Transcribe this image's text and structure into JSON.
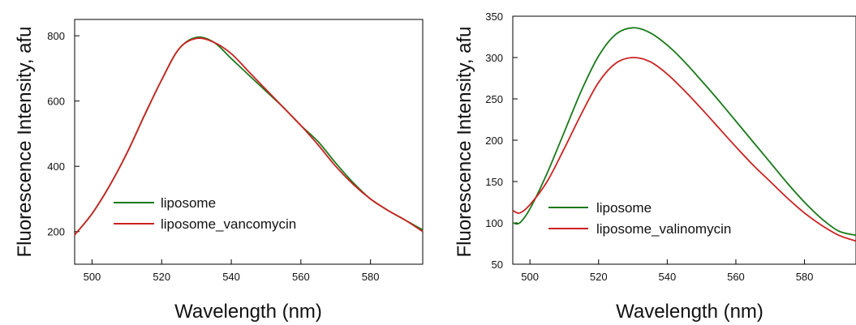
{
  "chart_data": [
    {
      "type": "line",
      "xlabel": "Wavelength (nm)",
      "ylabel": "Fluorescence Intensity, afu",
      "xlim": [
        495,
        595
      ],
      "ylim": [
        100,
        850
      ],
      "xticks": [
        500,
        520,
        540,
        560,
        580
      ],
      "yticks": [
        200,
        400,
        600,
        800
      ],
      "grid": false,
      "legend_position": "lower-left",
      "series": [
        {
          "name": "liposome",
          "color": "#1a7a1a",
          "x": [
            495,
            500,
            505,
            510,
            515,
            520,
            525,
            530,
            535,
            540,
            545,
            550,
            555,
            560,
            565,
            570,
            575,
            580,
            585,
            590,
            595
          ],
          "y": [
            190,
            255,
            340,
            440,
            555,
            665,
            760,
            795,
            780,
            730,
            680,
            630,
            580,
            525,
            475,
            410,
            350,
            300,
            265,
            235,
            205
          ]
        },
        {
          "name": "liposome_vancomycin",
          "color": "#cc2222",
          "x": [
            495,
            500,
            505,
            510,
            515,
            520,
            525,
            530,
            535,
            540,
            545,
            550,
            555,
            560,
            565,
            570,
            575,
            580,
            585,
            590,
            595
          ],
          "y": [
            190,
            255,
            340,
            440,
            555,
            665,
            760,
            792,
            780,
            745,
            690,
            635,
            580,
            525,
            465,
            400,
            345,
            300,
            265,
            235,
            200
          ]
        }
      ]
    },
    {
      "type": "line",
      "xlabel": "Wavelength (nm)",
      "ylabel": "Fluorescence Intensity, afu",
      "xlim": [
        495,
        595
      ],
      "ylim": [
        50,
        350
      ],
      "xticks": [
        500,
        520,
        540,
        560,
        580
      ],
      "yticks": [
        50,
        100,
        150,
        200,
        250,
        300,
        350
      ],
      "grid": false,
      "legend_position": "lower-left",
      "series": [
        {
          "name": "liposome",
          "color": "#1a7a1a",
          "x": [
            495,
            497,
            500,
            505,
            510,
            515,
            520,
            525,
            530,
            535,
            540,
            545,
            550,
            555,
            560,
            565,
            570,
            575,
            580,
            585,
            590,
            595
          ],
          "y": [
            100,
            100,
            117,
            160,
            210,
            260,
            302,
            328,
            336,
            330,
            315,
            295,
            272,
            248,
            223,
            198,
            173,
            148,
            125,
            105,
            90,
            85
          ]
        },
        {
          "name": "liposome_valinomycin",
          "color": "#cc2222",
          "x": [
            495,
            497,
            500,
            505,
            510,
            515,
            520,
            525,
            530,
            535,
            540,
            545,
            550,
            555,
            560,
            565,
            570,
            575,
            580,
            585,
            590,
            595
          ],
          "y": [
            115,
            112,
            122,
            150,
            190,
            232,
            270,
            293,
            300,
            295,
            280,
            260,
            238,
            215,
            192,
            170,
            150,
            130,
            112,
            97,
            85,
            78
          ]
        }
      ]
    }
  ]
}
